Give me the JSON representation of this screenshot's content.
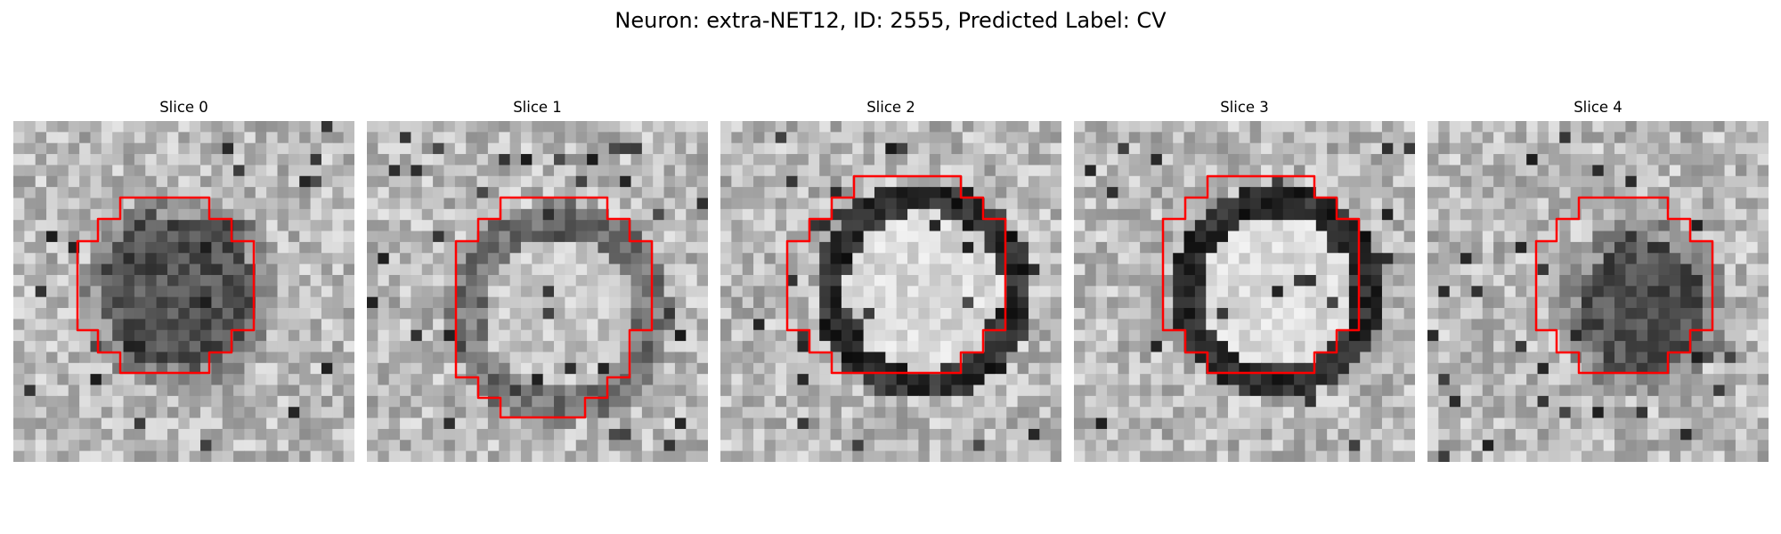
{
  "figure": {
    "title": "Neuron: extra-NET12, ID: 2555, Predicted Label: CV",
    "outline_color": "#ff0000",
    "colormap": "gray",
    "slices": [
      {
        "title": "Slice 0",
        "content": "dark_blob"
      },
      {
        "title": "Slice 1",
        "content": "faint_ring"
      },
      {
        "title": "Slice 2",
        "content": "ring"
      },
      {
        "title": "Slice 3",
        "content": "ring"
      },
      {
        "title": "Slice 4",
        "content": "dark_blob"
      }
    ]
  }
}
